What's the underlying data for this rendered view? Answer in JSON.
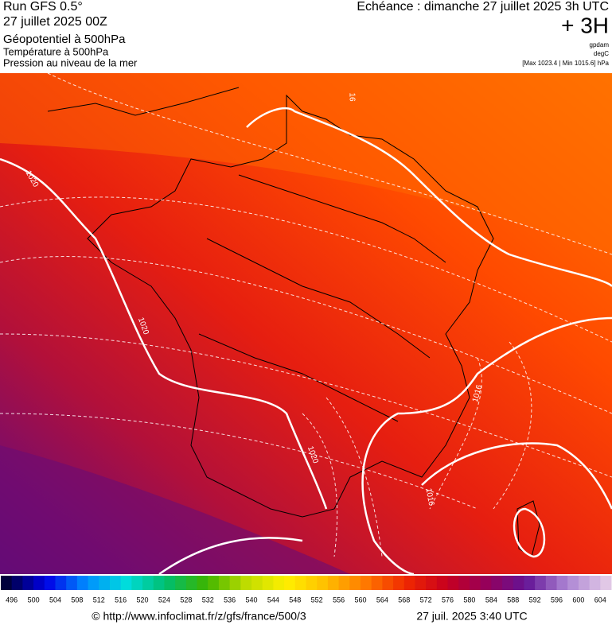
{
  "header": {
    "run": "Run GFS 0.5°",
    "run_date": "27 juillet 2025 00Z",
    "layer1": "Géopotentiel à 500hPa",
    "layer2": "Température à 500hPa",
    "layer3": "Pression au niveau de la mer",
    "valid": "Echéance : dimanche 27 juillet 2025 3h UTC",
    "lead": "+ 3H",
    "unit1": "gpdam",
    "unit2": "degC",
    "pressure_range": "[Max 1023.4 | Min 1015.6] hPa"
  },
  "map": {
    "contour_labels": [
      "1020",
      "1020",
      "1020",
      "1016",
      "1016",
      "16"
    ]
  },
  "legend": {
    "labels": [
      496,
      500,
      504,
      508,
      512,
      516,
      520,
      524,
      528,
      532,
      536,
      540,
      544,
      548,
      552,
      556,
      560,
      564,
      568,
      572,
      576,
      580,
      584,
      588,
      592,
      596,
      600,
      604
    ]
  },
  "footer": {
    "source": "© http://www.infoclimat.fr/z/gfs/france/500/3",
    "generated": "27 juil. 2025  3:40 UTC"
  }
}
